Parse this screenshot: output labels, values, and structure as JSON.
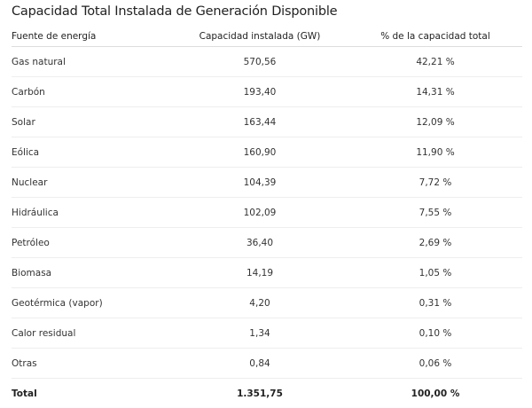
{
  "title": "Capacidad Total Instalada de Generación Disponible",
  "columns": [
    "Fuente de energía",
    "Capacidad instalada (GW)",
    "% de la capacidad total"
  ],
  "rows": [
    [
      "Gas natural",
      "570,56",
      "42,21 %"
    ],
    [
      "Carbón",
      "193,40",
      "14,31 %"
    ],
    [
      "Solar",
      "163,44",
      "12,09 %"
    ],
    [
      "Eólica",
      "160,90",
      "11,90 %"
    ],
    [
      "Nuclear",
      "104,39",
      "7,72 %"
    ],
    [
      "Hidráulica",
      "102,09",
      "7,55 %"
    ],
    [
      "Petróleo",
      "36,40",
      "2,69 %"
    ],
    [
      "Biomasa",
      "14,19",
      "1,05 %"
    ],
    [
      "Geotérmica (vapor)",
      "4,20",
      "0,31 %"
    ],
    [
      "Calor residual",
      "1,34",
      "0,10 %"
    ],
    [
      "Otras",
      "0,84",
      "0,06 %"
    ],
    [
      "Total",
      "1.351,75",
      "100,00 %"
    ]
  ]
}
